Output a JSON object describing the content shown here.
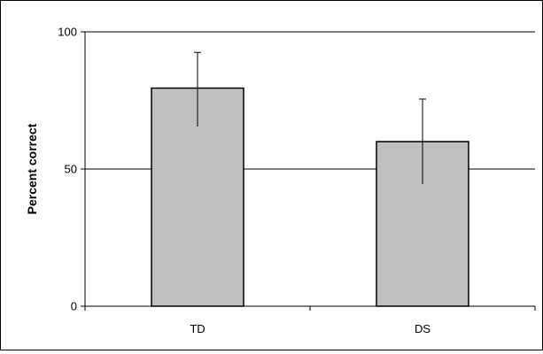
{
  "chart_data": {
    "type": "bar",
    "categories": [
      "TD",
      "DS"
    ],
    "values": [
      79.5,
      60.0
    ],
    "error": [
      {
        "low": 65.5,
        "high": 92.5
      },
      {
        "low": 44.5,
        "high": 75.5
      }
    ],
    "title": "",
    "xlabel": "",
    "ylabel": "Percent correct",
    "ylim": [
      0,
      100
    ],
    "yticks": [
      "0",
      "50",
      "100"
    ],
    "grid": "horizontal at 50 and 100",
    "colors": {
      "bar": "#c0c0c0",
      "bar_edge": "#000000",
      "axis": "#000000",
      "background": "#ffffff"
    }
  }
}
